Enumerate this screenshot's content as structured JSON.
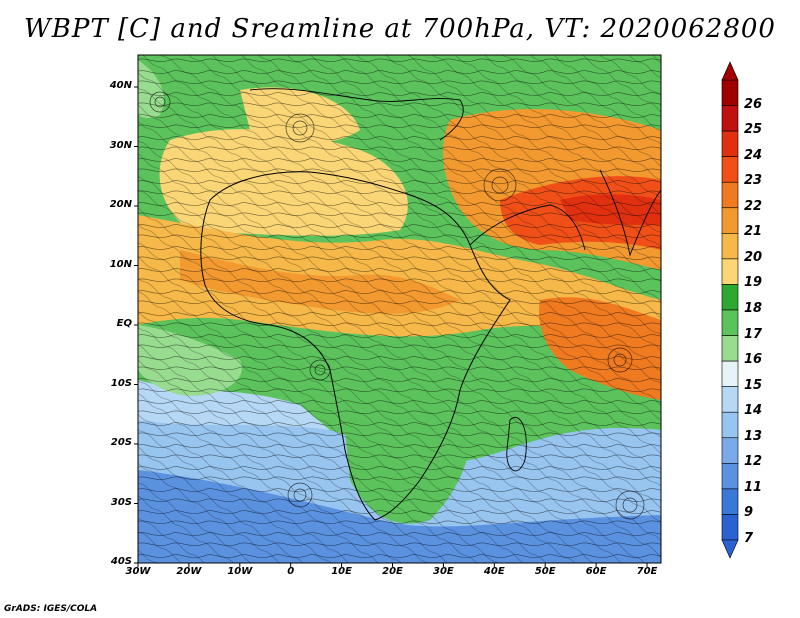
{
  "title": "WBPT [C] and Sreamline at 700hPa, VT: 2020062800",
  "credit": "GrADS: IGES/COLA",
  "lat_labels": [
    "40N",
    "30N",
    "20N",
    "10N",
    "EQ",
    "10S",
    "20S",
    "30S",
    "40S"
  ],
  "lon_labels": [
    "30W",
    "20W",
    "10W",
    "0",
    "10E",
    "20E",
    "30E",
    "40E",
    "50E",
    "60E",
    "70E"
  ],
  "colorbar": {
    "labels": [
      "26",
      "25",
      "24",
      "23",
      "22",
      "21",
      "20",
      "19",
      "18",
      "17",
      "16",
      "15",
      "14",
      "13",
      "12",
      "11",
      "9",
      "7"
    ],
    "colors": [
      "#a00000",
      "#c01010",
      "#e03010",
      "#f05018",
      "#f07a20",
      "#f29a30",
      "#f6b848",
      "#fad676",
      "#2ea832",
      "#5cc35c",
      "#98dc90",
      "#e6f4f8",
      "#b6d8f4",
      "#98c4f0",
      "#7aaae8",
      "#5a92e0",
      "#3a78d8",
      "#2a62d2"
    ]
  },
  "legend": {
    "temperature": "WBPT [C]",
    "streamline": "700hPa"
  }
}
